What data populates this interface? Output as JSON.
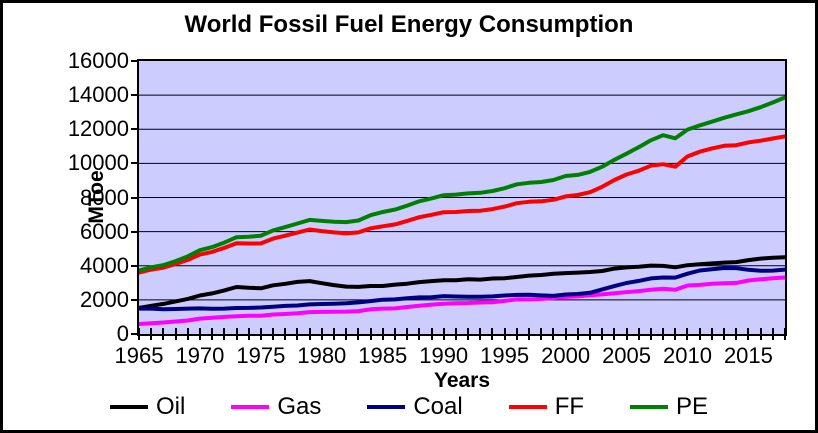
{
  "chart_data": {
    "type": "line",
    "title": "World Fossil Fuel Energy Consumption",
    "xlabel": "Years",
    "ylabel": "MToe",
    "xlim": [
      1965,
      2018
    ],
    "ylim": [
      0,
      16000
    ],
    "y_ticks": [
      0,
      2000,
      4000,
      6000,
      8000,
      10000,
      12000,
      14000,
      16000
    ],
    "x_major_ticks": [
      1965,
      1970,
      1975,
      1980,
      1985,
      1990,
      1995,
      2000,
      2005,
      2010,
      2015
    ],
    "x_minor_tick_interval_years": 1,
    "grid": "horizontal",
    "plot_background": "#CCCCFF",
    "legend_position": "bottom",
    "x": [
      1965,
      1966,
      1967,
      1968,
      1969,
      1970,
      1971,
      1972,
      1973,
      1974,
      1975,
      1976,
      1977,
      1978,
      1979,
      1980,
      1981,
      1982,
      1983,
      1984,
      1985,
      1986,
      1987,
      1988,
      1989,
      1990,
      1991,
      1992,
      1993,
      1994,
      1995,
      1996,
      1997,
      1998,
      1999,
      2000,
      2001,
      2002,
      2003,
      2004,
      2005,
      2006,
      2007,
      2008,
      2009,
      2010,
      2011,
      2012,
      2013,
      2014,
      2015,
      2016,
      2017,
      2018
    ],
    "series": [
      {
        "name": "Oil",
        "color": "#000000",
        "values": [
          1530,
          1651,
          1766,
          1909,
          2060,
          2254,
          2377,
          2556,
          2754,
          2708,
          2678,
          2852,
          2944,
          3055,
          3103,
          2979,
          2868,
          2776,
          2761,
          2815,
          2815,
          2893,
          2949,
          3039,
          3103,
          3148,
          3148,
          3208,
          3191,
          3255,
          3270,
          3341,
          3420,
          3456,
          3527,
          3572,
          3597,
          3631,
          3691,
          3831,
          3902,
          3945,
          4008,
          3989,
          3909,
          4032,
          4085,
          4138,
          4185,
          4211,
          4331,
          4418,
          4470,
          4501
        ]
      },
      {
        "name": "Gas",
        "color": "#FF00FF",
        "values": [
          587,
          632,
          676,
          732,
          794,
          900,
          950,
          1000,
          1045,
          1066,
          1075,
          1145,
          1170,
          1215,
          1285,
          1296,
          1309,
          1312,
          1340,
          1448,
          1488,
          1503,
          1583,
          1661,
          1722,
          1769,
          1806,
          1817,
          1849,
          1858,
          1938,
          2032,
          2028,
          2060,
          2103,
          2176,
          2201,
          2266,
          2323,
          2391,
          2455,
          2516,
          2599,
          2649,
          2591,
          2843,
          2875,
          2940,
          2977,
          2993,
          3135,
          3204,
          3267,
          3309
        ]
      },
      {
        "name": "Coal",
        "color": "#000080",
        "values": [
          1486,
          1490,
          1448,
          1463,
          1490,
          1499,
          1484,
          1488,
          1524,
          1531,
          1556,
          1596,
          1645,
          1672,
          1735,
          1757,
          1775,
          1806,
          1851,
          1931,
          2011,
          2030,
          2098,
          2146,
          2159,
          2220,
          2196,
          2183,
          2186,
          2205,
          2256,
          2293,
          2301,
          2263,
          2235,
          2316,
          2346,
          2412,
          2611,
          2805,
          2990,
          3110,
          3259,
          3313,
          3306,
          3532,
          3724,
          3797,
          3867,
          3862,
          3765,
          3706,
          3718,
          3772
        ]
      },
      {
        "name": "FF",
        "color": "#FF0000",
        "values": [
          3603,
          3773,
          3890,
          4104,
          4344,
          4653,
          4811,
          5044,
          5323,
          5305,
          5309,
          5593,
          5759,
          5942,
          6123,
          6032,
          5952,
          5894,
          5952,
          6194,
          6314,
          6426,
          6630,
          6846,
          6984,
          7137,
          7150,
          7208,
          7226,
          7318,
          7464,
          7666,
          7749,
          7779,
          7865,
          8064,
          8144,
          8309,
          8625,
          9027,
          9347,
          9571,
          9866,
          9951,
          9806,
          10407,
          10684,
          10875,
          11029,
          11066,
          11231,
          11328,
          11455,
          11582
        ]
      },
      {
        "name": "PE",
        "color": "#008000",
        "values": [
          3727,
          3908,
          4040,
          4274,
          4554,
          4910,
          5091,
          5359,
          5673,
          5705,
          5762,
          6073,
          6264,
          6477,
          6688,
          6629,
          6582,
          6559,
          6652,
          6964,
          7152,
          7291,
          7525,
          7776,
          7949,
          8136,
          8170,
          8238,
          8276,
          8383,
          8545,
          8771,
          8864,
          8909,
          9025,
          9262,
          9324,
          9499,
          9805,
          10207,
          10565,
          10950,
          11350,
          11650,
          11470,
          11978,
          12225,
          12440,
          12670,
          12870,
          13060,
          13290,
          13570,
          13865
        ]
      }
    ]
  }
}
